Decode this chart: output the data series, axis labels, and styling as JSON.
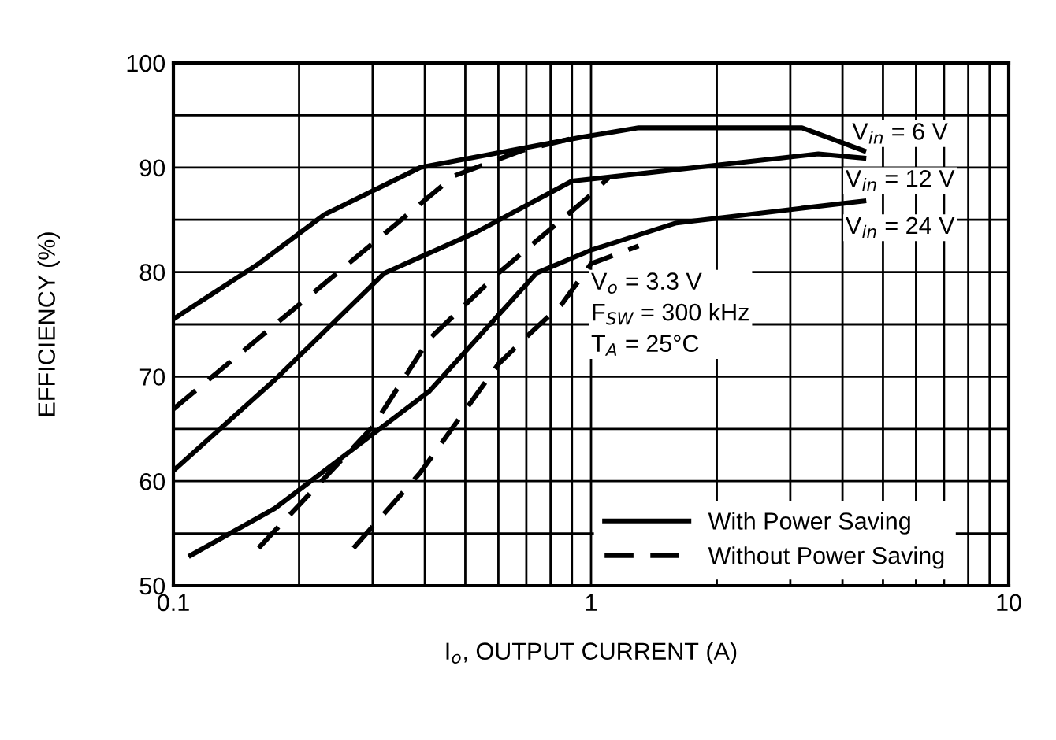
{
  "chart_data": {
    "type": "line",
    "xlabel": "I$_{o}$, OUTPUT CURRENT (A)",
    "ylabel": "EFFICIENCY (%)",
    "log": "x",
    "xlim": [
      0.1,
      10
    ],
    "xticks": [
      0.1,
      {
        "value": 0.2,
        "label": null
      },
      {
        "value": 0.3,
        "label": null
      },
      {
        "value": 0.4,
        "label": null
      },
      {
        "value": 0.5,
        "label": null
      },
      {
        "value": 0.6,
        "label": null
      },
      {
        "value": 0.7,
        "label": null
      },
      {
        "value": 0.8,
        "label": null
      },
      {
        "value": 0.9,
        "label": null
      },
      1,
      {
        "value": 2,
        "label": null
      },
      {
        "value": 3,
        "label": null
      },
      {
        "value": 4,
        "label": null
      },
      {
        "value": 5,
        "label": null
      },
      {
        "value": 6,
        "label": null
      },
      {
        "value": 7,
        "label": null
      },
      {
        "value": 8,
        "label": null
      },
      {
        "value": 9,
        "label": null
      },
      10
    ],
    "ylim": [
      50,
      100
    ],
    "yticks": [
      50,
      {
        "value": 55,
        "label": null
      },
      60,
      {
        "value": 65,
        "label": null
      },
      70,
      {
        "value": 75,
        "label": null
      },
      80,
      {
        "value": 85,
        "label": null
      },
      90,
      {
        "value": 95,
        "label": null
      },
      100
    ],
    "grid": true,
    "legend": "bottom",
    "marker": "none",
    "series": [
      {
        "name": "With Power Saving",
        "color": "#000000",
        "line_style": "solid",
        "x": [
          0.1,
          0.16,
          0.23,
          0.39,
          0.95,
          1.3,
          3.2,
          4.5
        ],
        "values": [
          75.5,
          80.8,
          85.5,
          90,
          92.9,
          93.8,
          93.8,
          91.6
        ]
      },
      {
        "color": "#000000",
        "line_style": "solid",
        "x": [
          0.1,
          0.175,
          0.32,
          0.53,
          0.9,
          3.5,
          4.5
        ],
        "values": [
          61,
          69.7,
          79.9,
          83.8,
          88.7,
          91.3,
          90.9
        ]
      },
      {
        "color": "#000000",
        "line_style": "solid",
        "x": [
          0.11,
          0.175,
          0.25,
          0.41,
          0.74,
          1.0,
          1.6,
          4.5
        ],
        "values": [
          52.9,
          57.4,
          62.1,
          68.6,
          79.9,
          82.1,
          84.7,
          86.8
        ]
      },
      {
        "name": "Without Power Saving",
        "color": "#000000",
        "line_style": "dashed",
        "x": [
          0.1,
          0.47,
          0.68,
          0.95
        ],
        "values": [
          66.9,
          89.2,
          91.6,
          93
        ]
      },
      {
        "color": "#000000",
        "line_style": "dashed",
        "x": [
          0.16,
          0.3,
          0.41,
          0.6,
          1.0,
          1.1
        ],
        "values": [
          53.6,
          65.2,
          73.6,
          79.9,
          87.4,
          89
        ]
      },
      {
        "color": "#000000",
        "line_style": "dashed",
        "x": [
          0.27,
          0.39,
          0.6,
          0.7,
          0.85,
          1.0,
          1.3
        ],
        "values": [
          53.6,
          60.8,
          71.2,
          73.8,
          76.9,
          80.8,
          82.5
        ]
      }
    ],
    "annotations": [
      "V$_{in}$ = 6 V",
      "V$_{in}$ = 12 V",
      "V$_{in}$ = 24 V",
      "V$_{o}$ = 3.3 V\nF$_{SW}$ = 300 kHz\nT$_{A}$ = 25°C"
    ]
  }
}
